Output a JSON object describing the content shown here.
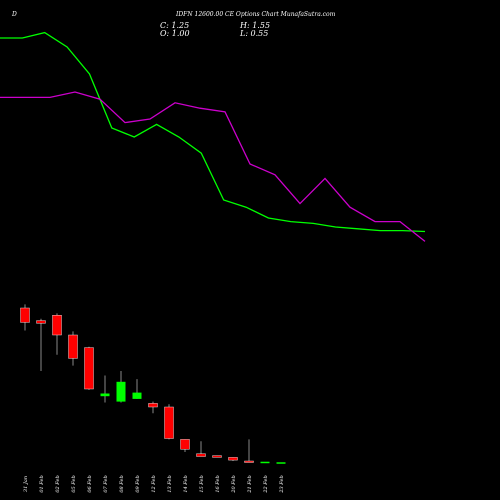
{
  "header": {
    "left_mark": "D",
    "title": "IDFN 12600.00 CE Options Chart MunafaSutra.com",
    "ohlc": {
      "close": "C: 1.25",
      "high": "H: 1.55",
      "open": "O: 1.00",
      "low": "L: 0.55"
    }
  },
  "chart_data": {
    "type": "candlestick",
    "title": "IDFN 12600.00 CE Options Chart MunafaSutra.com",
    "colors": {
      "up": "#00ff00",
      "down": "#ff0000",
      "background": "#000000",
      "wick": "#888888",
      "ma_fast": "#00ff00",
      "ma_slow": "#cc00cc"
    },
    "grid": false,
    "categories": [
      "31 Jan",
      "01 Feb",
      "02 Feb",
      "05 Feb",
      "06 Feb",
      "07 Feb",
      "08 Feb",
      "09 Feb",
      "12 Feb",
      "13 Feb",
      "14 Feb",
      "15 Feb",
      "16 Feb",
      "20 Feb",
      "21 Feb",
      "22 Feb",
      "23 Feb"
    ],
    "candles": [
      {
        "o": 50.0,
        "h": 52.0,
        "l": 37.5,
        "c": 42.0
      },
      {
        "o": 43.0,
        "h": 44.0,
        "l": 15.0,
        "c": 41.5
      },
      {
        "o": 46.0,
        "h": 47.0,
        "l": 24.0,
        "c": 35.0
      },
      {
        "o": 35.0,
        "h": 37.0,
        "l": 18.0,
        "c": 22.0
      },
      {
        "o": 28.0,
        "h": 28.5,
        "l": 4.5,
        "c": 5.0
      },
      {
        "o": 1.0,
        "h": 12.5,
        "l": -2.5,
        "c": 2.5
      },
      {
        "o": -2.0,
        "h": 15.0,
        "l": -2.5,
        "c": 9.0
      },
      {
        "o": -0.5,
        "h": 10.5,
        "l": -0.5,
        "c": 3.0
      },
      {
        "o": -3.0,
        "h": -2.0,
        "l": -8.5,
        "c": -5.0
      },
      {
        "o": -5.0,
        "h": -3.5,
        "l": -23.0,
        "c": -22.5
      },
      {
        "o": -23.0,
        "h": -23.0,
        "l": -30.0,
        "c": -28.5
      },
      {
        "o": -31.0,
        "h": -24.0,
        "l": -32.0,
        "c": -32.5
      },
      {
        "o": -32.0,
        "h": -32.0,
        "l": -33.0,
        "c": -33.0
      },
      {
        "o": -33.0,
        "h": -33.0,
        "l": -35.0,
        "c": -34.5
      },
      {
        "o": -35.0,
        "h": -23.0,
        "l": -35.5,
        "c": -35.3
      },
      {
        "o": -35.6,
        "h": -35.6,
        "l": -36.0,
        "c": -35.4
      },
      {
        "o": -35.9,
        "h": -35.9,
        "l": -36.2,
        "c": -35.7
      }
    ],
    "ma_fast_upper": [
      200,
      200,
      203,
      195,
      180,
      150,
      145,
      152,
      145,
      136,
      110,
      106,
      100,
      98,
      97,
      95,
      94,
      93,
      93,
      92.5
    ],
    "ma_slow_upper": [
      167,
      167,
      167,
      170,
      166,
      153,
      155,
      164,
      161,
      159,
      130,
      124,
      108,
      122,
      106,
      98,
      98,
      87
    ],
    "ylim": [
      -40,
      210
    ]
  }
}
